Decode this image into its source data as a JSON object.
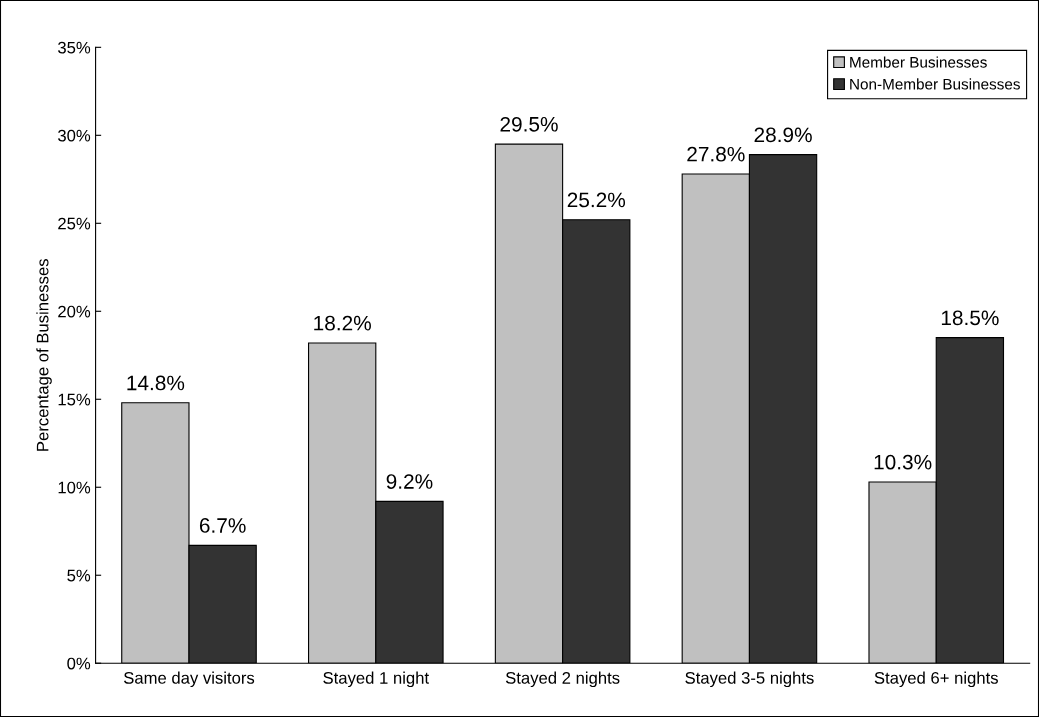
{
  "chart_data": {
    "type": "bar",
    "ylabel": "Percentage of Businesses",
    "categories": [
      "Same day visitors",
      "Stayed 1 night",
      "Stayed 2 nights",
      "Stayed 3-5 nights",
      "Stayed 6+ nights"
    ],
    "series": [
      {
        "name": "Member Businesses",
        "color": "#c0c0c0",
        "values": [
          14.8,
          18.2,
          29.5,
          27.8,
          10.3
        ],
        "value_labels": [
          "14.8%",
          "18.2%",
          "29.5%",
          "27.8%",
          "10.3%"
        ]
      },
      {
        "name": "Non-Member Businesses",
        "color": "#333333",
        "values": [
          6.7,
          9.2,
          25.2,
          28.9,
          18.5
        ],
        "value_labels": [
          "6.7%",
          "9.2%",
          "25.2%",
          "28.9%",
          "18.5%"
        ]
      }
    ],
    "ylim": [
      0,
      35
    ],
    "yticks": [
      {
        "value": 0,
        "label": "0%"
      },
      {
        "value": 5,
        "label": "5%"
      },
      {
        "value": 10,
        "label": "10%"
      },
      {
        "value": 15,
        "label": "15%"
      },
      {
        "value": 20,
        "label": "20%"
      },
      {
        "value": 25,
        "label": "25%"
      },
      {
        "value": 30,
        "label": "30%"
      },
      {
        "value": 35,
        "label": "35%"
      }
    ],
    "grid": false,
    "legend": "top right"
  }
}
